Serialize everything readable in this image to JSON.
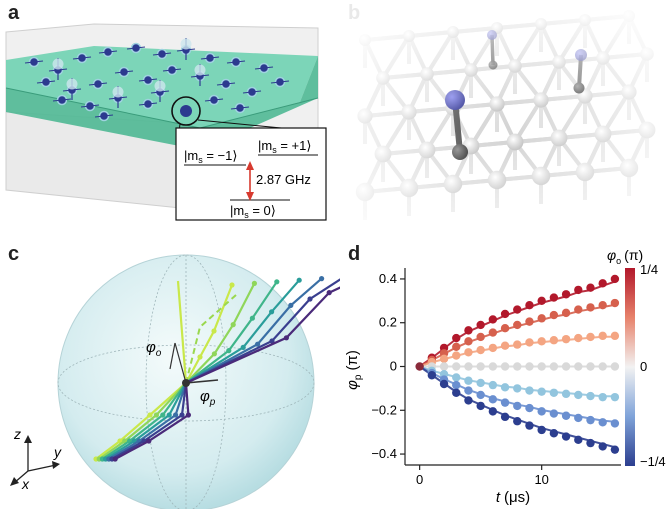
{
  "panels": {
    "a": {
      "letter": "a",
      "levels": {
        "minus": "|m",
        "minus_sub": "s",
        "minus_val": " = −1⟩",
        "plus": "|m",
        "plus_sub": "s",
        "plus_val": " = +1⟩",
        "zero": "|m",
        "zero_sub": "s",
        "zero_val": " = 0⟩",
        "gap": "2.87 GHz"
      }
    },
    "b": {
      "letter": "b"
    },
    "c": {
      "letter": "c",
      "phi_o": "φ",
      "phi_o_sub": "o",
      "phi_p": "φ",
      "phi_p_sub": "p",
      "axes": {
        "z": "z",
        "y": "y",
        "x": "x"
      }
    },
    "d": {
      "letter": "d"
    }
  },
  "colors": {
    "slab": "#5fc9a8",
    "nv_blue": "#2c3a8f",
    "arrow_red": "#d73a2f",
    "colorbar_top": "#b2182b",
    "colorbar_mid": "#f2f2f2",
    "colorbar_bottom": "#2c3e8f"
  },
  "chart_data": {
    "type": "scatter",
    "xlabel": "t (μs)",
    "xlabel_italic": "t",
    "xlabel_unit": "(μs)",
    "ylabel": "φp (π)",
    "ylabel_sym": "φ",
    "ylabel_sub": "p",
    "ylabel_unit": "(π)",
    "xlim": [
      -1.2,
      16.5
    ],
    "ylim": [
      -0.45,
      0.45
    ],
    "x_ticks": [
      0,
      10
    ],
    "y_ticks": [
      0.4,
      0.2,
      0,
      -0.2,
      -0.4
    ],
    "y_tick_labels": [
      "0.4",
      "0.2",
      "0",
      "−0.2",
      "−0.4"
    ],
    "colorbar": {
      "title": "φo (π)",
      "title_sym": "φ",
      "title_sub": "o",
      "title_unit": "(π)",
      "labels": [
        "1/4",
        "0",
        "−1/4"
      ]
    },
    "x": [
      0,
      1,
      2,
      3,
      4,
      5,
      6,
      7,
      8,
      9,
      10,
      11,
      12,
      13,
      14,
      15,
      16
    ],
    "series": [
      {
        "color": "#b2182b",
        "final": 0.4,
        "values": [
          0,
          0.04,
          0.085,
          0.13,
          0.165,
          0.19,
          0.215,
          0.24,
          0.26,
          0.28,
          0.3,
          0.315,
          0.33,
          0.35,
          0.36,
          0.38,
          0.4
        ]
      },
      {
        "color": "#d6604d",
        "final": 0.29,
        "values": [
          0,
          0.03,
          0.06,
          0.09,
          0.115,
          0.135,
          0.155,
          0.175,
          0.19,
          0.205,
          0.22,
          0.235,
          0.245,
          0.26,
          0.27,
          0.28,
          0.29
        ]
      },
      {
        "color": "#f4a582",
        "final": 0.14,
        "values": [
          0,
          0.02,
          0.035,
          0.05,
          0.065,
          0.075,
          0.085,
          0.095,
          0.1,
          0.11,
          0.115,
          0.12,
          0.125,
          0.13,
          0.135,
          0.14,
          0.14
        ]
      },
      {
        "color": "#d9d9d9",
        "final": 0.0,
        "values": [
          0,
          0,
          0,
          0,
          0,
          0,
          0,
          0,
          0,
          0,
          0,
          0,
          0,
          0,
          0,
          0,
          0
        ]
      },
      {
        "color": "#92c5de",
        "final": -0.14,
        "values": [
          0,
          -0.02,
          -0.035,
          -0.05,
          -0.065,
          -0.075,
          -0.085,
          -0.095,
          -0.1,
          -0.11,
          -0.115,
          -0.12,
          -0.125,
          -0.13,
          -0.135,
          -0.14,
          -0.14
        ]
      },
      {
        "color": "#6a8fd0",
        "final": -0.26,
        "values": [
          0,
          -0.03,
          -0.06,
          -0.085,
          -0.11,
          -0.13,
          -0.15,
          -0.165,
          -0.18,
          -0.19,
          -0.205,
          -0.215,
          -0.225,
          -0.235,
          -0.245,
          -0.255,
          -0.26
        ]
      },
      {
        "color": "#2c3e8f",
        "final": -0.38,
        "values": [
          0,
          -0.04,
          -0.08,
          -0.12,
          -0.155,
          -0.18,
          -0.205,
          -0.23,
          -0.25,
          -0.27,
          -0.29,
          -0.305,
          -0.32,
          -0.335,
          -0.35,
          -0.365,
          -0.38
        ]
      }
    ]
  }
}
